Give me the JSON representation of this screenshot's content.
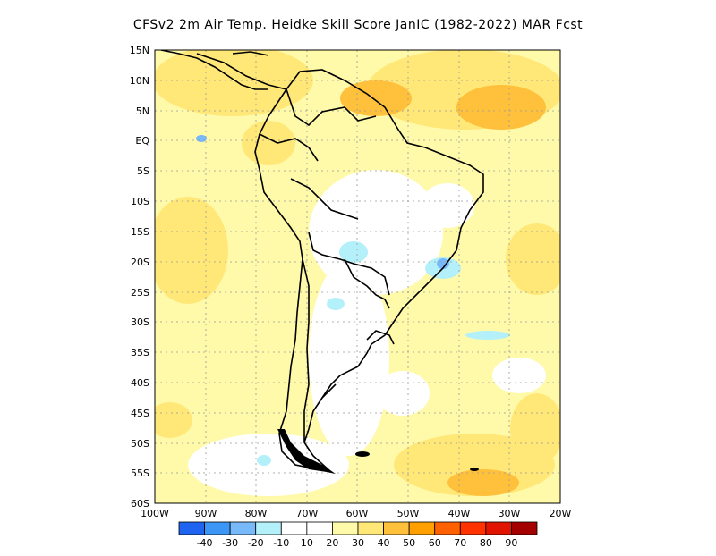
{
  "title": "CFSv2  2m Air Temp. Heidke Skill Score JanIC (1982-2022) MAR Fcst",
  "map": {
    "lat_labels": [
      "15N",
      "10N",
      "5N",
      "EQ",
      "5S",
      "10S",
      "15S",
      "20S",
      "25S",
      "30S",
      "35S",
      "40S",
      "45S",
      "50S",
      "55S",
      "60S"
    ],
    "lon_labels": [
      "100W",
      "90W",
      "80W",
      "70W",
      "60W",
      "50W",
      "40W",
      "30W",
      "20W"
    ],
    "region": "South America",
    "lon_range": [
      -100,
      -20
    ],
    "lat_range": [
      -60,
      15
    ]
  },
  "legend": {
    "labels": [
      "-40",
      "-30",
      "-20",
      "-10",
      "10",
      "20",
      "30",
      "40",
      "50",
      "60",
      "70",
      "80",
      "90"
    ],
    "colors": [
      "#1e64f0",
      "#3c96f5",
      "#78b9fa",
      "#b4f0fa",
      "#ffffff",
      "#fffaaa",
      "#ffe878",
      "#ffc03c",
      "#ffa000",
      "#ff6000",
      "#ff3200",
      "#e11400",
      "#a50000"
    ]
  }
}
